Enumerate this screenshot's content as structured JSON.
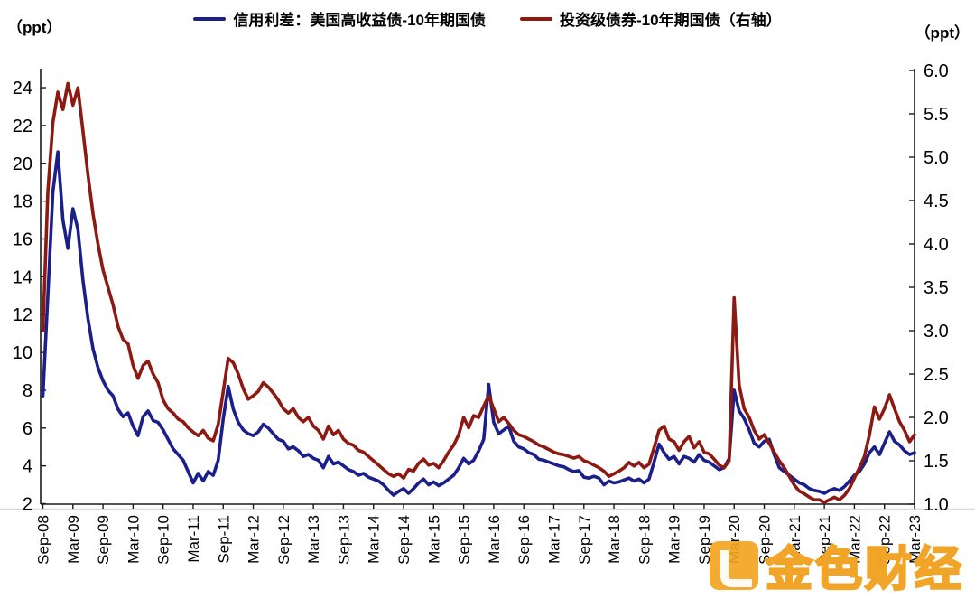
{
  "header": {
    "left_unit": "（ppt）",
    "right_unit": "（ppt）",
    "legend": [
      {
        "label": "信用利差：美国高收益债-10年期国债",
        "color": "#1a1f8a"
      },
      {
        "label": "投资级债券-10年期国债（右轴）",
        "color": "#8c1912"
      }
    ]
  },
  "watermark": {
    "text": "金色财经",
    "color": "#F3A420"
  },
  "chart_data": {
    "type": "line",
    "title": "",
    "xlabel": "",
    "ylabel_left": "（ppt）",
    "ylabel_right": "（ppt）",
    "grid": false,
    "legend_position": "top-center",
    "x_labels": [
      "Sep-08",
      "Mar-09",
      "Sep-09",
      "Mar-10",
      "Sep-10",
      "Mar-11",
      "Sep-11",
      "Mar-12",
      "Sep-12",
      "Mar-13",
      "Sep-13",
      "Mar-14",
      "Sep-14",
      "Mar-15",
      "Sep-15",
      "Mar-16",
      "Sep-16",
      "Mar-17",
      "Sep-17",
      "Mar-18",
      "Sep-18",
      "Mar-19",
      "Sep-19",
      "Mar-20",
      "Sep-20",
      "Mar-21",
      "Sep-21",
      "Mar-22",
      "Sep-22",
      "Mar-23"
    ],
    "x_label_interval_months": 6,
    "left_axis": {
      "min": 2,
      "max": 25,
      "ticks": [
        2,
        4,
        6,
        8,
        10,
        12,
        14,
        16,
        18,
        20,
        22,
        24
      ]
    },
    "right_axis": {
      "min": 1.0,
      "max": 6.0,
      "ticks": [
        "1.0",
        "1.5",
        "2.0",
        "2.5",
        "3.0",
        "3.5",
        "4.0",
        "4.5",
        "5.0",
        "5.5",
        "6.0"
      ]
    },
    "series": [
      {
        "name": "信用利差：美国高收益债-10年期国债",
        "axis": "left",
        "color": "#1a1f8a",
        "start": "Sep-08",
        "frequency": "monthly",
        "values": [
          7.7,
          13.0,
          18.5,
          20.6,
          17.0,
          15.5,
          17.6,
          16.5,
          13.8,
          11.8,
          10.2,
          9.2,
          8.5,
          8.0,
          7.7,
          7.0,
          6.6,
          6.8,
          6.1,
          5.6,
          6.6,
          6.9,
          6.4,
          6.3,
          5.9,
          5.4,
          4.9,
          4.6,
          4.3,
          3.7,
          3.1,
          3.6,
          3.2,
          3.7,
          3.5,
          4.3,
          6.5,
          8.2,
          7.0,
          6.3,
          5.9,
          5.7,
          5.6,
          5.8,
          6.2,
          6.0,
          5.7,
          5.4,
          5.3,
          4.9,
          5.0,
          4.8,
          4.5,
          4.6,
          4.4,
          4.3,
          3.9,
          4.5,
          4.1,
          4.2,
          4.0,
          3.8,
          3.7,
          3.5,
          3.6,
          3.4,
          3.3,
          3.2,
          3.0,
          2.7,
          2.45,
          2.65,
          2.8,
          2.55,
          2.8,
          3.1,
          3.3,
          3.0,
          3.15,
          2.95,
          3.1,
          3.3,
          3.5,
          3.9,
          4.4,
          4.1,
          4.3,
          4.8,
          5.4,
          8.3,
          6.3,
          5.7,
          5.9,
          6.1,
          5.3,
          5.0,
          4.9,
          4.7,
          4.6,
          4.35,
          4.3,
          4.2,
          4.1,
          4.0,
          3.95,
          3.8,
          3.7,
          3.75,
          3.4,
          3.35,
          3.45,
          3.35,
          3.0,
          3.2,
          3.1,
          3.15,
          3.25,
          3.35,
          3.2,
          3.3,
          3.1,
          3.3,
          4.2,
          5.15,
          4.7,
          4.35,
          4.5,
          4.1,
          4.5,
          4.4,
          4.2,
          4.6,
          4.3,
          4.2,
          4.0,
          3.8,
          3.9,
          4.4,
          8.0,
          6.9,
          6.5,
          5.9,
          5.2,
          5.0,
          5.3,
          5.4,
          4.6,
          3.9,
          3.7,
          3.5,
          3.3,
          3.1,
          3.0,
          2.8,
          2.7,
          2.65,
          2.55,
          2.7,
          2.8,
          2.7,
          2.9,
          3.2,
          3.5,
          3.7,
          4.1,
          4.7,
          5.0,
          4.6,
          5.2,
          5.8,
          5.3,
          5.1,
          4.8,
          4.6,
          4.7
        ]
      },
      {
        "name": "投资级债券-10年期国债（右轴）",
        "axis": "right",
        "color": "#8c1912",
        "start": "Sep-08",
        "frequency": "monthly",
        "values": [
          3.0,
          4.6,
          5.4,
          5.75,
          5.55,
          5.85,
          5.6,
          5.8,
          5.3,
          4.8,
          4.35,
          4.0,
          3.7,
          3.5,
          3.3,
          3.05,
          2.9,
          2.85,
          2.6,
          2.45,
          2.6,
          2.65,
          2.5,
          2.4,
          2.2,
          2.1,
          2.05,
          1.98,
          1.95,
          1.88,
          1.83,
          1.79,
          1.85,
          1.76,
          1.73,
          1.92,
          2.3,
          2.68,
          2.63,
          2.5,
          2.33,
          2.21,
          2.25,
          2.3,
          2.4,
          2.35,
          2.28,
          2.2,
          2.1,
          2.05,
          2.1,
          2.0,
          1.95,
          2.0,
          1.9,
          1.85,
          1.75,
          1.9,
          1.8,
          1.85,
          1.75,
          1.7,
          1.68,
          1.62,
          1.6,
          1.55,
          1.5,
          1.45,
          1.4,
          1.35,
          1.32,
          1.35,
          1.3,
          1.4,
          1.38,
          1.47,
          1.52,
          1.45,
          1.47,
          1.42,
          1.5,
          1.6,
          1.68,
          1.8,
          2.0,
          1.88,
          2.02,
          2.0,
          2.13,
          2.25,
          2.1,
          1.95,
          2.0,
          1.93,
          1.85,
          1.8,
          1.78,
          1.75,
          1.72,
          1.68,
          1.66,
          1.63,
          1.6,
          1.58,
          1.57,
          1.55,
          1.53,
          1.55,
          1.5,
          1.48,
          1.45,
          1.42,
          1.38,
          1.32,
          1.35,
          1.38,
          1.42,
          1.48,
          1.44,
          1.48,
          1.42,
          1.46,
          1.65,
          1.85,
          1.9,
          1.75,
          1.72,
          1.62,
          1.72,
          1.78,
          1.65,
          1.72,
          1.6,
          1.58,
          1.52,
          1.45,
          1.42,
          1.5,
          3.38,
          2.37,
          2.1,
          2.0,
          1.85,
          1.75,
          1.8,
          1.7,
          1.6,
          1.5,
          1.42,
          1.32,
          1.22,
          1.15,
          1.12,
          1.08,
          1.05,
          1.05,
          1.02,
          1.05,
          1.08,
          1.05,
          1.1,
          1.18,
          1.3,
          1.42,
          1.55,
          1.8,
          2.12,
          1.98,
          2.1,
          2.26,
          2.1,
          1.95,
          1.85,
          1.72,
          1.8
        ]
      }
    ]
  }
}
